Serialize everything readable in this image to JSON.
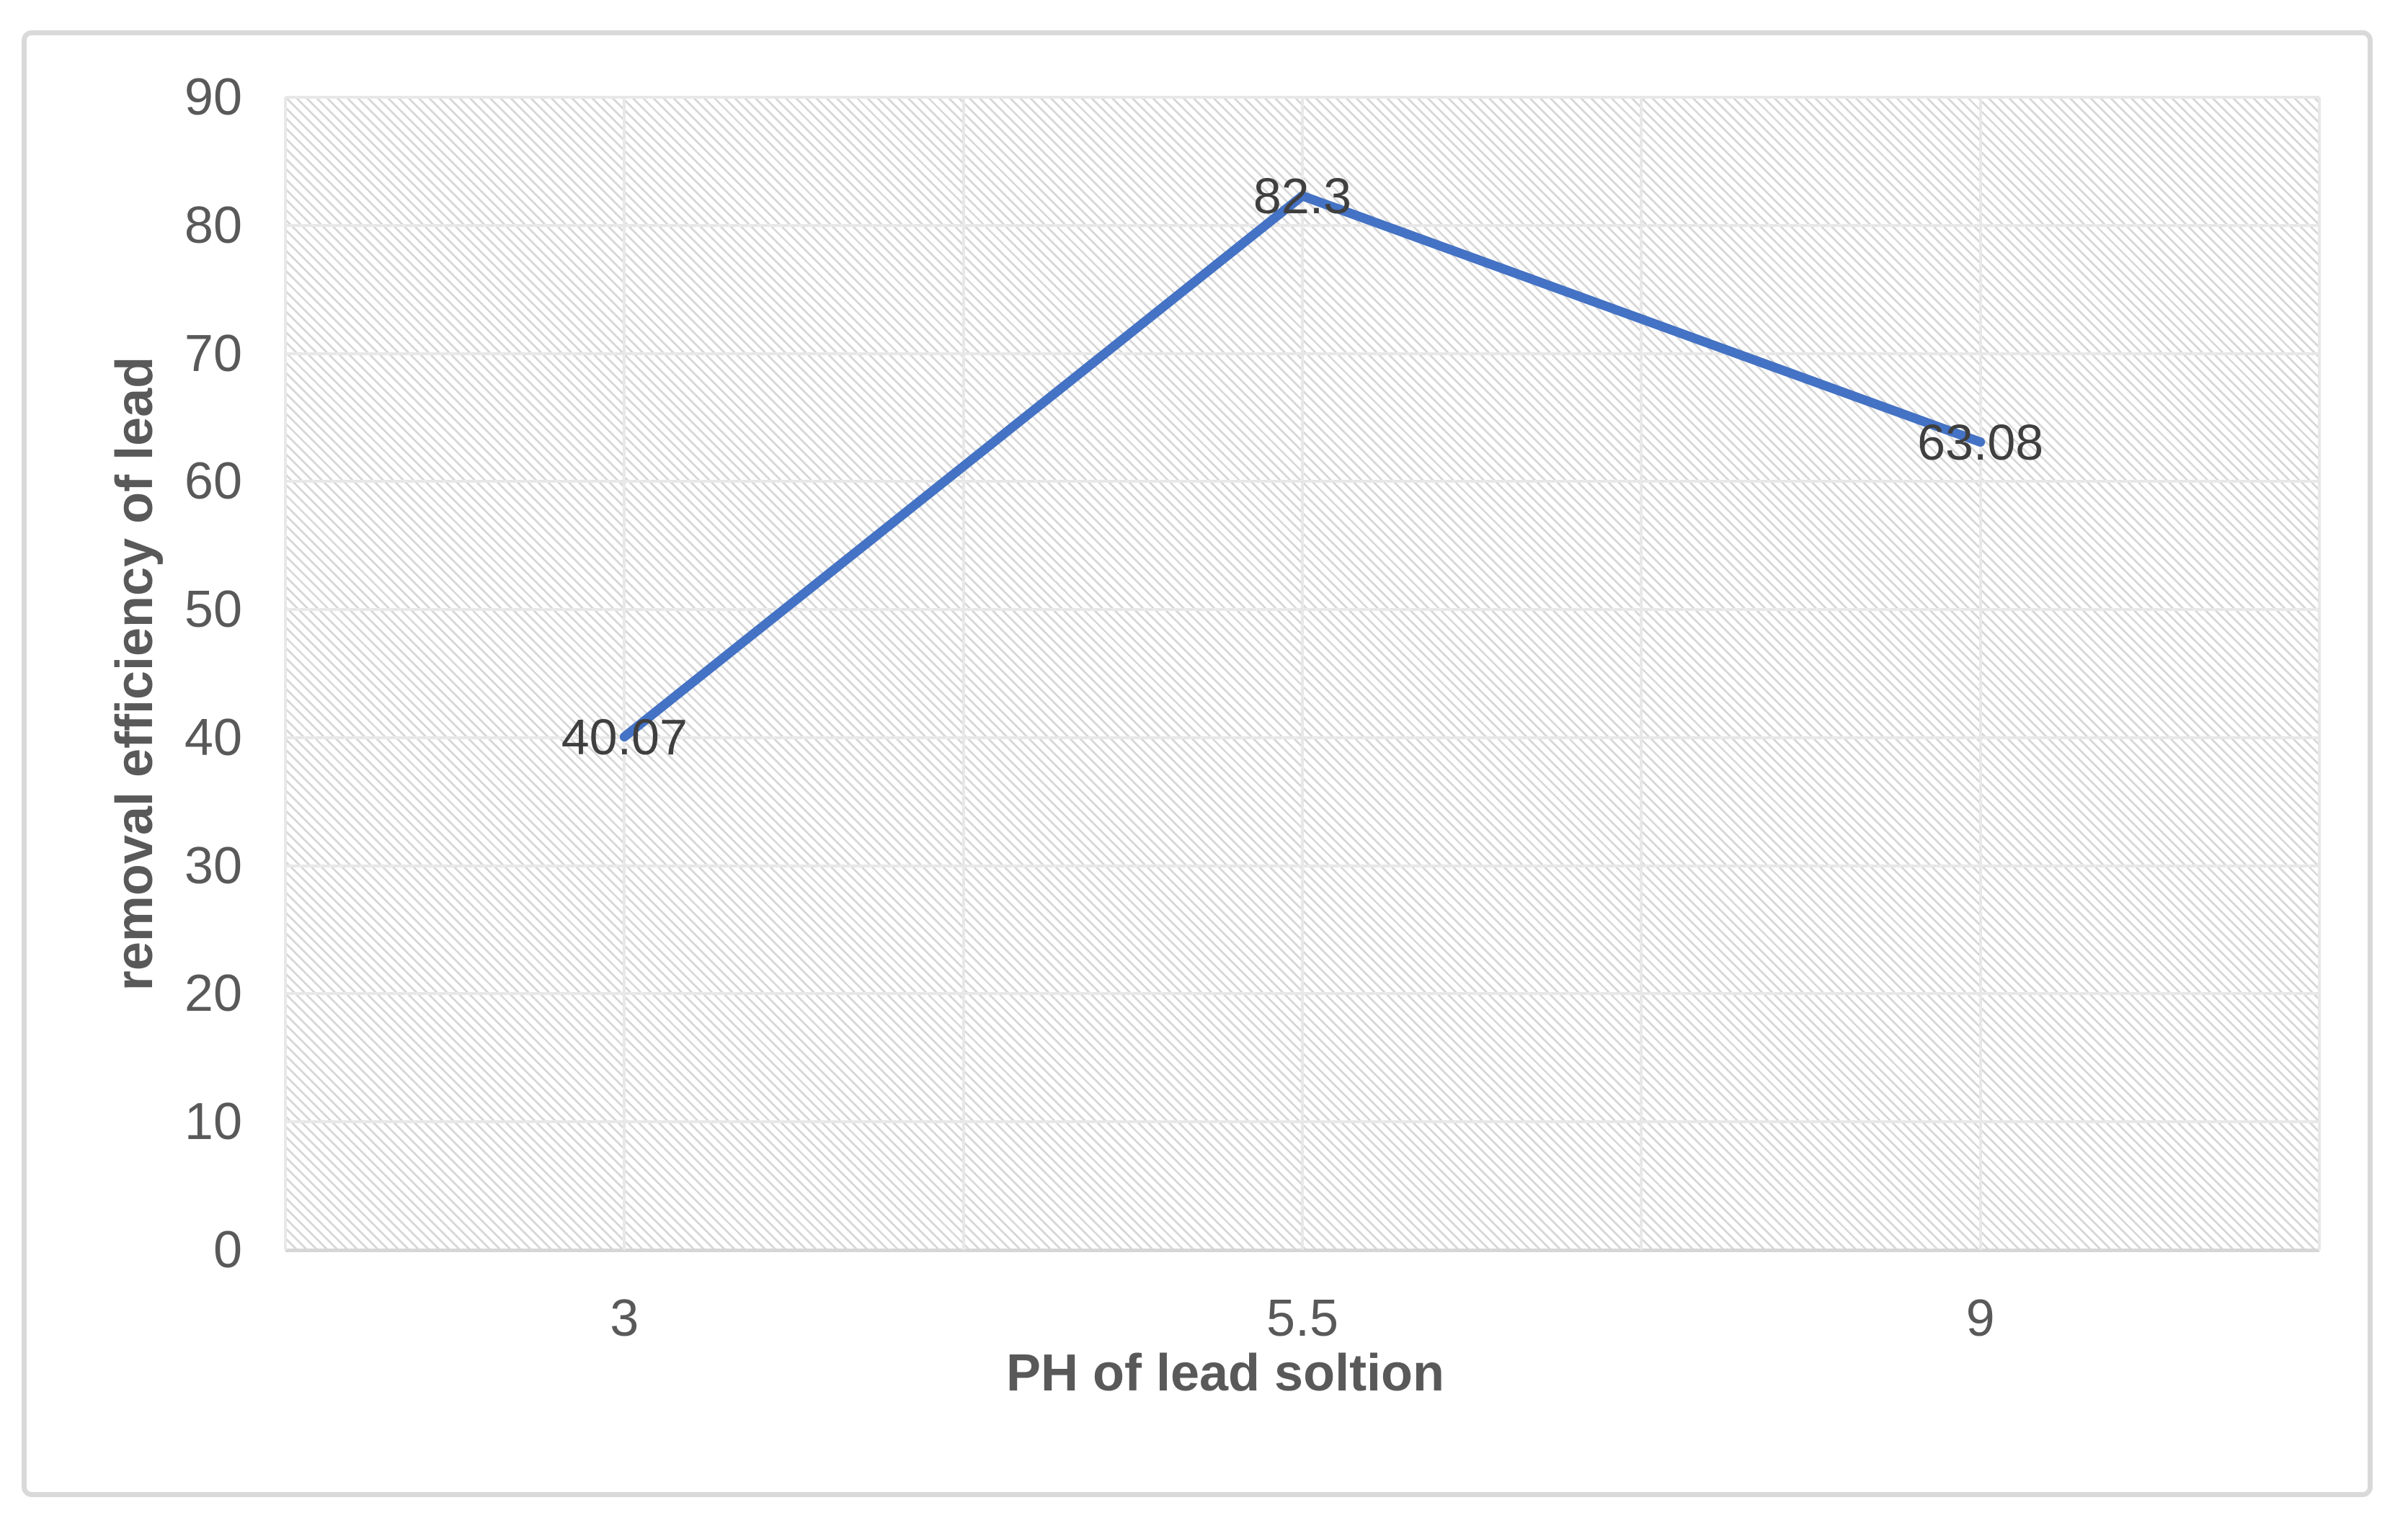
{
  "chart_data": {
    "type": "line",
    "title": "",
    "categories": [
      "3",
      "5.5",
      "9"
    ],
    "series": [
      {
        "name": "removal efficiency of lead",
        "values": [
          40.07,
          82.3,
          63.08
        ],
        "color": "#4472C4"
      }
    ],
    "data_labels": [
      "40.07",
      "82.3",
      "63.08"
    ],
    "data_label_position": "center",
    "xlabel": "PH of lead soltion",
    "ylabel": "removal efficiency of lead",
    "ylim": [
      0,
      90
    ],
    "ytick_step": 10,
    "ytick_labels": [
      "0",
      "10",
      "20",
      "30",
      "40",
      "50",
      "60",
      "70",
      "80",
      "90"
    ],
    "grid": "horizontal and vertical, light gray",
    "x_grid_intervals": 6,
    "legend": "none",
    "plot_background": "light diagonal hatch pattern",
    "colors": {
      "line": "#4472C4",
      "gridline": "#e8e8e8",
      "axis_line": "#d6d6d6",
      "tick_text": "#595959",
      "title_text": "#595959",
      "data_label_text": "#3f3f3f",
      "frame_border": "#d9d9d9",
      "background": "#ffffff"
    }
  }
}
